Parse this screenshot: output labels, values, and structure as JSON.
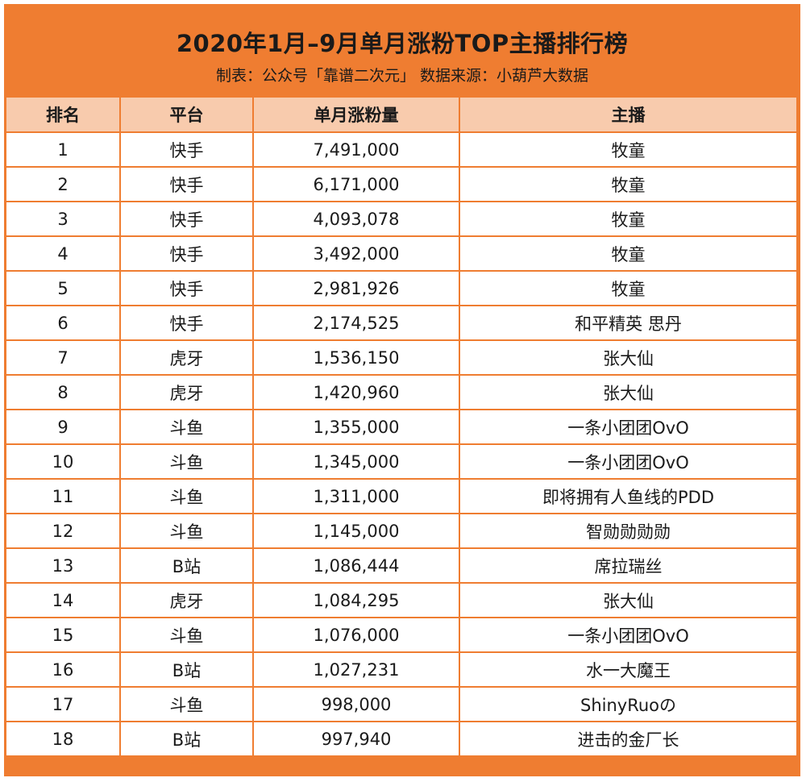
{
  "header": {
    "title": "2020年1月–9月单月涨粉TOP主播排行榜",
    "subtitle": "制表：公众号「靠谱二次元」 数据来源：小葫芦大数据"
  },
  "colors": {
    "accent": "#ef7d31",
    "header_row": "#f8cbad",
    "cell_bg": "#ffffff"
  },
  "chart_data": {
    "type": "table",
    "title": "2020年1月–9月单月涨粉TOP主播排行榜",
    "subtitle": "制表：公众号「靠谱二次元」 数据来源：小葫芦大数据",
    "columns": [
      "排名",
      "平台",
      "单月涨粉量",
      "主播"
    ],
    "rows": [
      [
        "1",
        "快手",
        "7,491,000",
        "牧童"
      ],
      [
        "2",
        "快手",
        "6,171,000",
        "牧童"
      ],
      [
        "3",
        "快手",
        "4,093,078",
        "牧童"
      ],
      [
        "4",
        "快手",
        "3,492,000",
        "牧童"
      ],
      [
        "5",
        "快手",
        "2,981,926",
        "牧童"
      ],
      [
        "6",
        "快手",
        "2,174,525",
        "和平精英  思丹"
      ],
      [
        "7",
        "虎牙",
        "1,536,150",
        "张大仙"
      ],
      [
        "8",
        "虎牙",
        "1,420,960",
        "张大仙"
      ],
      [
        "9",
        "斗鱼",
        "1,355,000",
        "一条小团团OvO"
      ],
      [
        "10",
        "斗鱼",
        "1,345,000",
        "一条小团团OvO"
      ],
      [
        "11",
        "斗鱼",
        "1,311,000",
        "即将拥有人鱼线的PDD"
      ],
      [
        "12",
        "斗鱼",
        "1,145,000",
        "智勋勋勋勋"
      ],
      [
        "13",
        "B站",
        "1,086,444",
        "席拉瑞丝"
      ],
      [
        "14",
        "虎牙",
        "1,084,295",
        "张大仙"
      ],
      [
        "15",
        "斗鱼",
        "1,076,000",
        "一条小团团OvO"
      ],
      [
        "16",
        "B站",
        "1,027,231",
        "水一大魔王"
      ],
      [
        "17",
        "斗鱼",
        "998,000",
        "ShinyRuoの"
      ],
      [
        "18",
        "B站",
        "997,940",
        "进击的金厂长"
      ]
    ]
  }
}
